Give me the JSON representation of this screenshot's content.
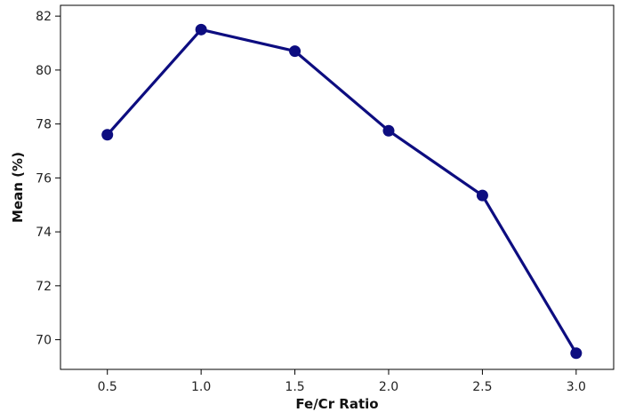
{
  "chart_data": {
    "type": "line",
    "title": "",
    "xlabel": "Fe/Cr Ratio",
    "ylabel": "Mean (%)",
    "x": [
      0.5,
      1.0,
      1.5,
      2.0,
      2.5,
      3.0
    ],
    "x_tick_labels": [
      "0.5",
      "1.0",
      "1.5",
      "2.0",
      "2.5",
      "3.0"
    ],
    "y_ticks": [
      70,
      72,
      74,
      76,
      78,
      80,
      82
    ],
    "y_tick_labels": [
      "70",
      "72",
      "74",
      "76",
      "78",
      "80",
      "82"
    ],
    "series": [
      {
        "values": [
          77.6,
          81.5,
          80.7,
          77.75,
          75.35,
          69.5
        ],
        "color": "#0d0d80"
      }
    ],
    "xlim": [
      0.25,
      3.2
    ],
    "ylim": [
      68.9,
      82.4
    ],
    "grid": false,
    "legend": "none"
  }
}
